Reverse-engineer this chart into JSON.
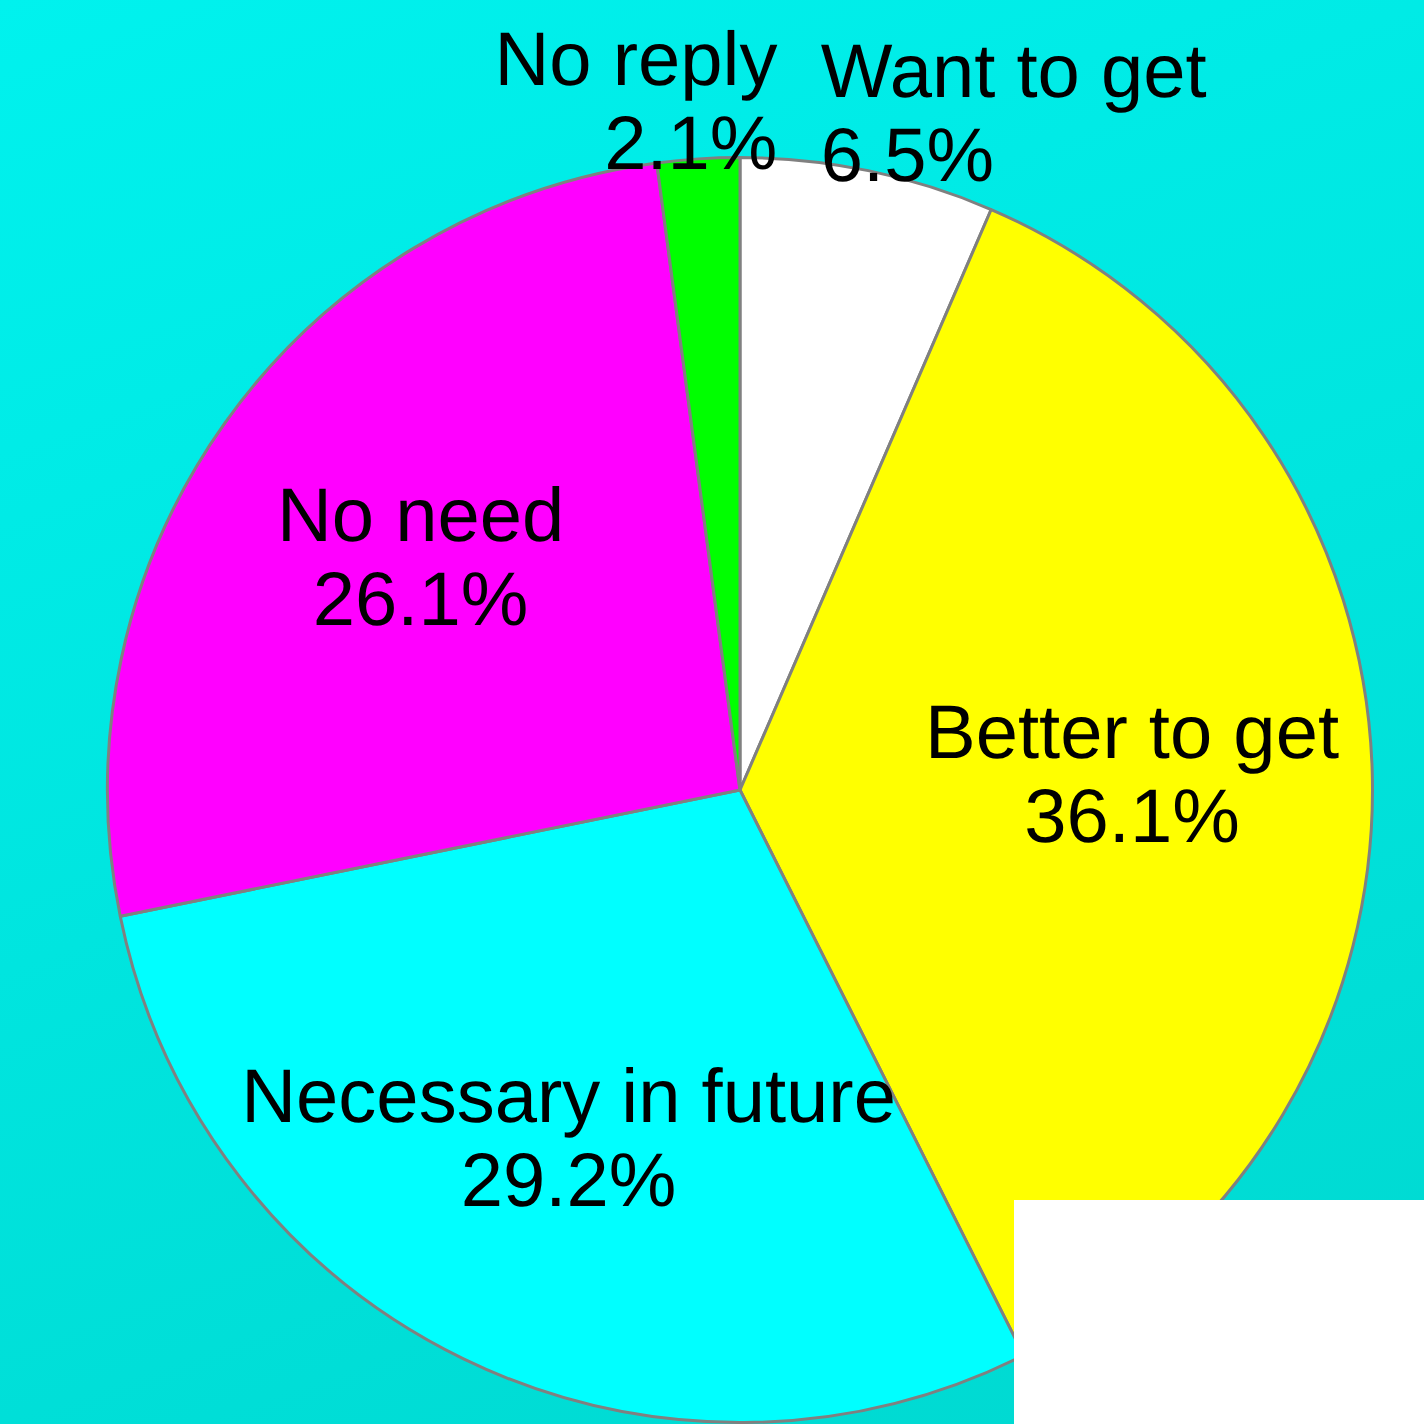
{
  "chart_data": {
    "type": "pie",
    "categories": [
      "Want to get",
      "Better to get",
      "Necessary in future",
      "No need",
      "No reply"
    ],
    "values": [
      6.5,
      36.1,
      29.2,
      26.1,
      2.1
    ],
    "colors": [
      "#ffffff",
      "#ffff00",
      "#00ffff",
      "#ff00ff",
      "#00ff00"
    ],
    "value_labels": [
      "6.5%",
      "36.1%",
      "29.2%",
      "26.1%",
      "2.1%"
    ],
    "legend": false
  }
}
